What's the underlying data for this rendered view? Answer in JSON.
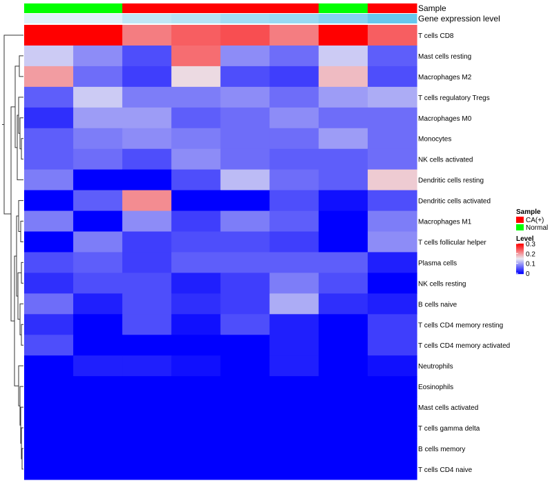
{
  "chart_data": {
    "type": "heatmap",
    "annotation_labels": {
      "sample": "Sample",
      "expression": "Gene expression level"
    },
    "sample_groups": [
      "Normal",
      "Normal",
      "CA(+)",
      "CA(+)",
      "CA(+)",
      "CA(+)",
      "Normal",
      "CA(+)"
    ],
    "expression_bar_levels": [
      0.02,
      0.02,
      0.05,
      0.06,
      0.08,
      0.09,
      0.11,
      0.14
    ],
    "rows": [
      "T cells CD8",
      "Mast cells resting",
      "Macrophages M2",
      "T cells regulatory  Tregs",
      "Macrophages M0",
      "Monocytes",
      "NK cells activated",
      "Dendritic cells resting",
      "Dendritic cells activated",
      "Macrophages M1",
      "T cells follicular helper",
      "Plasma cells",
      "NK cells resting",
      "B cells naive",
      "T cells CD4 memory resting",
      "T cells CD4 memory activated",
      "Neutrophils",
      "Eosinophils",
      "Mast cells activated",
      "T cells gamma delta",
      "B cells memory",
      "T cells CD4 naive"
    ],
    "values": [
      [
        0.3,
        0.3,
        0.22,
        0.24,
        0.25,
        0.22,
        0.3,
        0.24
      ],
      [
        0.13,
        0.09,
        0.05,
        0.23,
        0.09,
        0.07,
        0.13,
        0.06
      ],
      [
        0.2,
        0.07,
        0.04,
        0.16,
        0.05,
        0.04,
        0.18,
        0.05
      ],
      [
        0.06,
        0.13,
        0.08,
        0.08,
        0.09,
        0.07,
        0.1,
        0.11
      ],
      [
        0.03,
        0.1,
        0.1,
        0.06,
        0.07,
        0.09,
        0.07,
        0.07
      ],
      [
        0.06,
        0.08,
        0.09,
        0.08,
        0.07,
        0.07,
        0.1,
        0.07
      ],
      [
        0.06,
        0.07,
        0.05,
        0.09,
        0.07,
        0.06,
        0.06,
        0.07
      ],
      [
        0.08,
        0.0,
        0.0,
        0.05,
        0.12,
        0.07,
        0.06,
        0.17
      ],
      [
        0.0,
        0.06,
        0.21,
        0.0,
        0.0,
        0.05,
        0.01,
        0.05
      ],
      [
        0.08,
        0.0,
        0.09,
        0.04,
        0.08,
        0.06,
        0.0,
        0.08
      ],
      [
        0.0,
        0.08,
        0.04,
        0.05,
        0.05,
        0.04,
        0.0,
        0.09
      ],
      [
        0.05,
        0.06,
        0.04,
        0.06,
        0.06,
        0.06,
        0.06,
        0.02
      ],
      [
        0.03,
        0.05,
        0.05,
        0.02,
        0.04,
        0.08,
        0.05,
        0.0
      ],
      [
        0.07,
        0.02,
        0.05,
        0.03,
        0.04,
        0.11,
        0.03,
        0.02
      ],
      [
        0.03,
        0.0,
        0.05,
        0.01,
        0.05,
        0.02,
        0.0,
        0.04
      ],
      [
        0.05,
        0.0,
        0.0,
        0.0,
        0.0,
        0.02,
        0.0,
        0.04
      ],
      [
        0.0,
        0.02,
        0.02,
        0.01,
        0.0,
        0.02,
        0.0,
        0.01
      ],
      [
        0.0,
        0.0,
        0.0,
        0.0,
        0.0,
        0.0,
        0.0,
        0.0
      ],
      [
        0.0,
        0.0,
        0.0,
        0.0,
        0.0,
        0.0,
        0.0,
        0.0
      ],
      [
        0.0,
        0.0,
        0.0,
        0.0,
        0.0,
        0.0,
        0.0,
        0.0
      ],
      [
        0.0,
        0.0,
        0.0,
        0.0,
        0.0,
        0.0,
        0.0,
        0.0
      ],
      [
        0.0,
        0.0,
        0.0,
        0.0,
        0.0,
        0.0,
        0.0,
        0.0
      ]
    ],
    "color_scale": {
      "min": 0,
      "max": 0.3,
      "low_color": "#0000ff",
      "mid_color": "#ebeaf2",
      "high_color": "#ff0000",
      "mid_value": 0.15
    },
    "legends": {
      "sample": {
        "title": "Sample",
        "entries": [
          {
            "label": "CA(+)",
            "color": "#ff0000"
          },
          {
            "label": "Normal",
            "color": "#00ff00"
          }
        ]
      },
      "level": {
        "title": "Level",
        "ticks": [
          "0.3",
          "0.2",
          "0.1",
          "0"
        ],
        "tick_values": [
          0.3,
          0.2,
          0.1,
          0
        ]
      }
    },
    "expression_bar_colors": {
      "low": "#f2f8fb",
      "high": "#66c8ee"
    },
    "dendrogram": "hierarchical clustering of rows (left side)"
  }
}
